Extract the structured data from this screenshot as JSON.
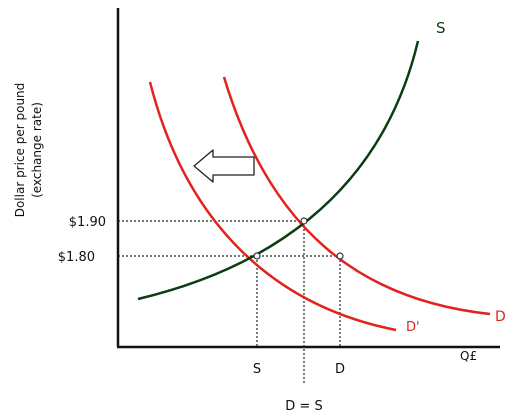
{
  "chart_data": {
    "type": "line",
    "ylabel_line1": "Dollar price per pound",
    "ylabel_line2": "(exchange rate)",
    "xlabel": "Q£",
    "price_ticks": [
      {
        "label": "$1.90",
        "value": 1.9
      },
      {
        "label": "$1.80",
        "value": 1.8
      }
    ],
    "quantity_ticks": [
      {
        "label": "S"
      },
      {
        "label": "D"
      }
    ],
    "bottom_label": "D = S",
    "curves": {
      "supply": {
        "label": "S",
        "color": "#0b3d12"
      },
      "demand": {
        "label": "D",
        "color": "#e0231c"
      },
      "demand_shifted": {
        "label": "D'",
        "color": "#e0231c"
      }
    },
    "shift_arrow": {
      "direction": "left",
      "meaning": "demand shifts from D to D'"
    }
  }
}
